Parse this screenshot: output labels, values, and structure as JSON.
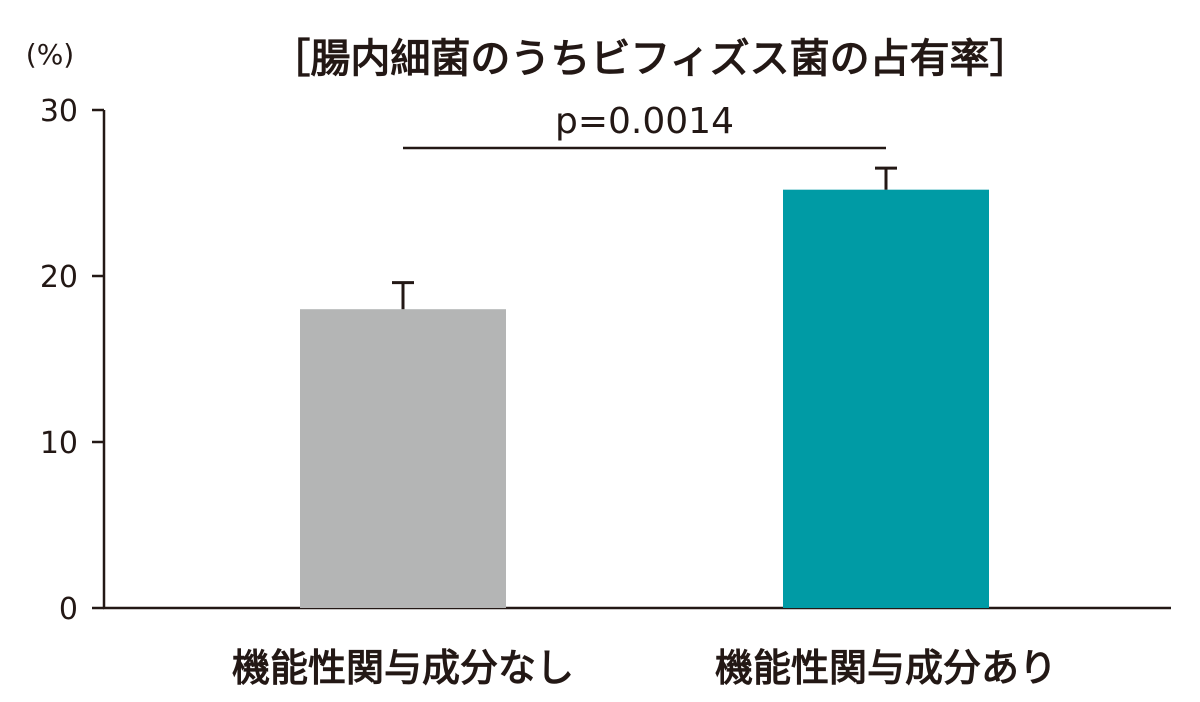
{
  "chart_data": {
    "type": "bar",
    "title": "［腸内細菌のうちビフィズス菌の占有率］",
    "y_unit_label": "(%)",
    "ylim": [
      0,
      30
    ],
    "yticks": [
      "0",
      "10",
      "20",
      "30"
    ],
    "categories": [
      "機能性関与成分なし",
      "機能性関与成分あり"
    ],
    "values": [
      18,
      25.2
    ],
    "error_upper": [
      19.6,
      26.5
    ],
    "colors": [
      "#b4b5b5",
      "#009ba5"
    ],
    "significance": {
      "label": "p=0.0014",
      "between": [
        0,
        1
      ]
    },
    "grid": false,
    "legend": "none"
  }
}
